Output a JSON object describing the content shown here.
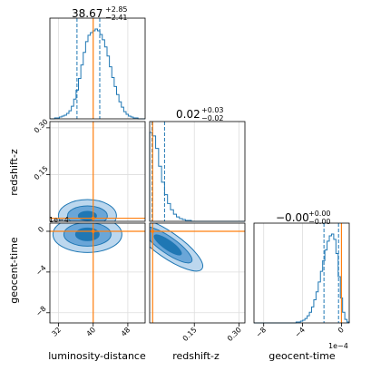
{
  "chart_data": {
    "type": "corner",
    "parameters": [
      {
        "name": "luminosity-distance",
        "label": "luminosity-distance",
        "truth": 40.0,
        "median": 38.67,
        "quantiles": [
          36.26,
          41.52
        ],
        "range": [
          30,
          52
        ],
        "ticks": [
          32,
          40,
          48
        ],
        "tick_labels": [
          "32",
          "40",
          "48"
        ],
        "title": {
          "value": "38.67",
          "plus": "+2.85",
          "minus": "−2.41"
        },
        "hist": [
          0,
          0,
          1,
          1,
          2,
          3,
          4,
          6,
          9,
          14,
          22,
          32,
          45,
          60,
          74,
          86,
          93,
          96,
          98,
          100,
          98,
          94,
          88,
          80,
          70,
          58,
          46,
          36,
          27,
          19,
          13,
          8,
          5,
          3,
          2,
          1,
          1,
          0,
          0,
          0
        ]
      },
      {
        "name": "redshift-z",
        "label": "redshift-z",
        "truth": 0.01,
        "median": 0.02,
        "quantiles": [
          0.008,
          0.05
        ],
        "range": [
          0.0,
          0.32
        ],
        "ticks": [
          0.15,
          0.3
        ],
        "tick_labels": [
          "0.15",
          "0.30"
        ],
        "title": {
          "value": "0.02",
          "plus": "+0.03",
          "minus": "−0.02"
        },
        "hist": [
          100,
          96,
          82,
          62,
          44,
          30,
          20,
          13,
          8,
          5,
          3,
          2,
          1,
          1,
          0,
          0,
          0,
          0,
          0,
          0,
          0,
          0,
          0,
          0,
          0,
          0,
          0,
          0,
          0,
          0,
          0,
          0
        ]
      },
      {
        "name": "geocent-time",
        "label": "geocent-time",
        "truth": 0.0,
        "median": -0.0,
        "quantiles": [
          -0.00018,
          -3e-05
        ],
        "range": [
          -0.0009,
          8e-05
        ],
        "ticks": [
          -0.0008,
          -0.0004,
          0.0
        ],
        "tick_labels": [
          "−8",
          "−4",
          "0"
        ],
        "offset_label": "1e−4",
        "title": {
          "value": "−0.00",
          "plus": "+0.00",
          "minus": "−0.00"
        },
        "hist": [
          0,
          0,
          0,
          0,
          0,
          0,
          0,
          0,
          0,
          0,
          0,
          0,
          0,
          0,
          0,
          0,
          0,
          0,
          0,
          1,
          1,
          2,
          3,
          5,
          8,
          12,
          18,
          26,
          35,
          46,
          58,
          70,
          82,
          92,
          98,
          100,
          94,
          78,
          52,
          28,
          12,
          4,
          1
        ]
      }
    ],
    "ylabels": [
      "redshift-z",
      "geocent-time"
    ],
    "y_ticks_row1": {
      "ticks": [
        0.15,
        0.3
      ],
      "tick_labels": [
        "0.15",
        "0.30"
      ]
    },
    "y_ticks_row2": {
      "ticks": [
        -0.0008,
        -0.0004,
        0.0
      ],
      "tick_labels": [
        "−8",
        "−4",
        "0"
      ],
      "offset_label": "1e−4"
    },
    "colors": {
      "hist": "#1f77b4",
      "contour_light": "#bcd7ee",
      "contour_mid": "#6aa6d8",
      "contour_dark": "#1f77b4",
      "truth": "#ff7f0e"
    }
  }
}
